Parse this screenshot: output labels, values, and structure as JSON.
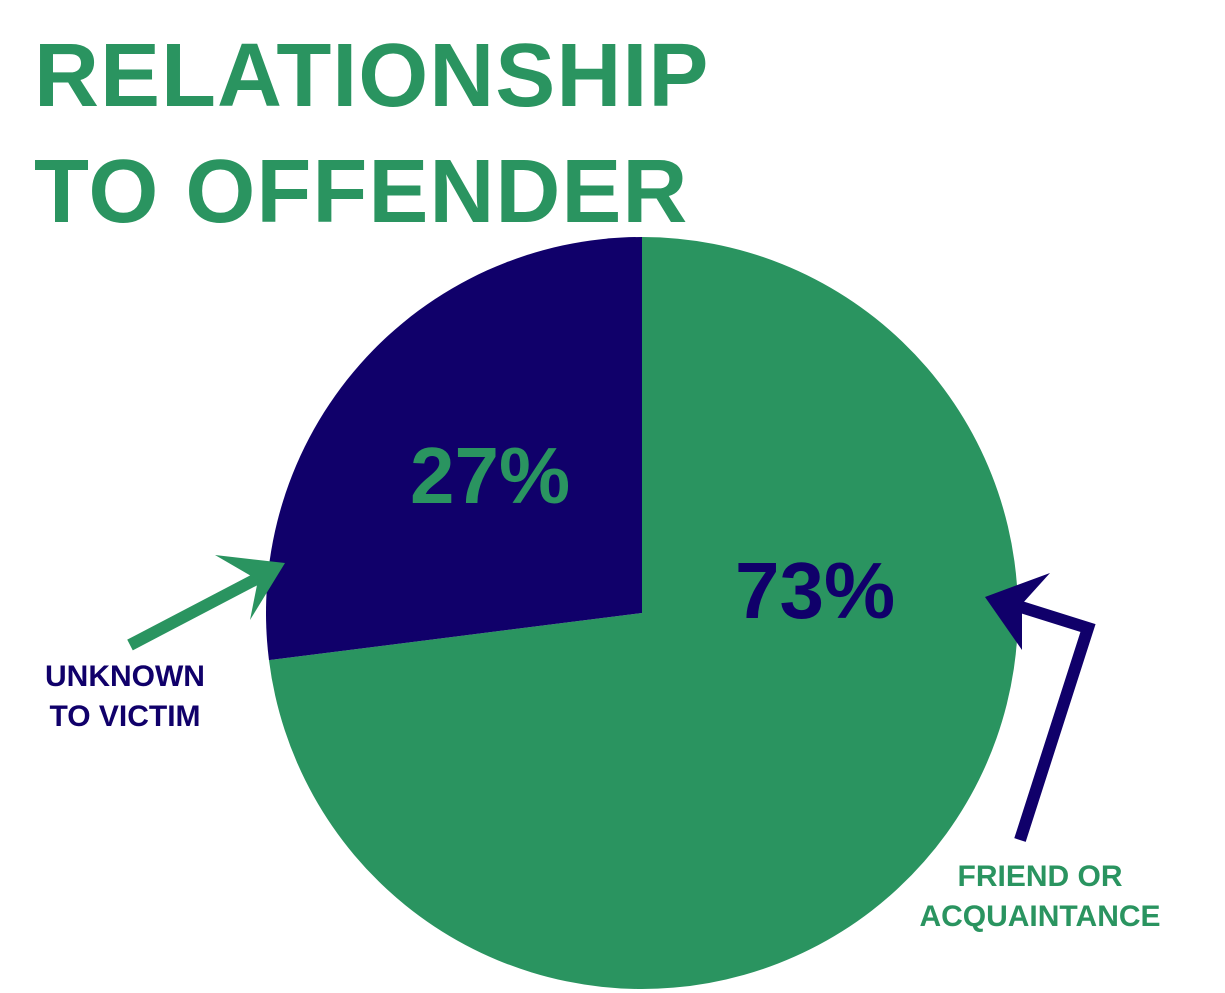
{
  "chart_data": {
    "type": "pie",
    "title": "RELATIONSHIP TO OFFENDER",
    "categories": [
      "FRIEND OR ACQUAINTANCE",
      "UNKNOWN TO VICTIM"
    ],
    "values": [
      73,
      27
    ],
    "value_labels": [
      "73%",
      "27%"
    ],
    "colors": [
      "#2a9460",
      "#10006a"
    ]
  }
}
